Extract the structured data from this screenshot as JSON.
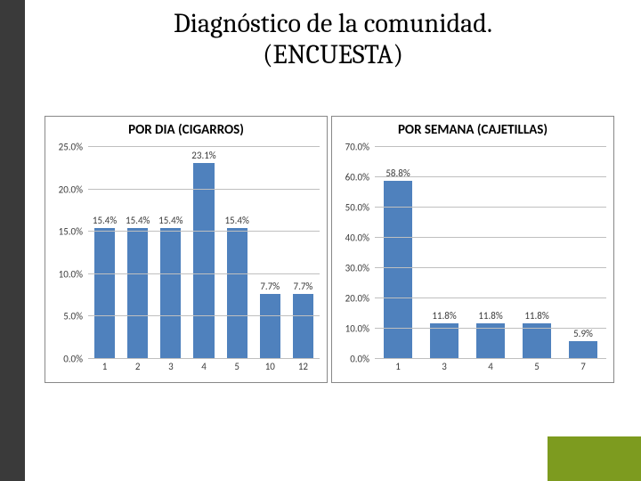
{
  "layout": {
    "sidebar_color": "#3a3a3a",
    "accent_color": "#7d9b1f"
  },
  "title": {
    "line1": "Diagnóstico de la comunidad.",
    "line2": "(ENCUESTA)",
    "fontsize": 30
  },
  "chart_left": {
    "type": "bar",
    "title": "POR DIA (CIGARROS)",
    "title_fontsize": 15,
    "categories": [
      "1",
      "2",
      "3",
      "4",
      "5",
      "10",
      "12"
    ],
    "values": [
      15.4,
      15.4,
      15.4,
      23.1,
      15.4,
      7.7,
      7.7
    ],
    "value_labels": [
      "15.4%",
      "15.4%",
      "15.4%",
      "23.1%",
      "15.4%",
      "7.7%",
      "7.7%"
    ],
    "bar_color": "#4f81bd",
    "ylim": [
      0,
      25
    ],
    "ytick_step": 5,
    "ytick_labels": [
      "0.0%",
      "5.0%",
      "10.0%",
      "15.0%",
      "20.0%",
      "25.0%"
    ],
    "grid_color": "#bfbfbf",
    "background_color": "#ffffff",
    "label_fontsize": 11
  },
  "chart_right": {
    "type": "bar",
    "title": "POR SEMANA (CAJETILLAS)",
    "title_fontsize": 15,
    "categories": [
      "1",
      "3",
      "4",
      "5",
      "7"
    ],
    "values": [
      58.8,
      11.8,
      11.8,
      11.8,
      5.9
    ],
    "value_labels": [
      "58.8%",
      "11.8%",
      "11.8%",
      "11.8%",
      "5.9%"
    ],
    "bar_color": "#4f81bd",
    "ylim": [
      0,
      70
    ],
    "ytick_step": 10,
    "ytick_labels": [
      "0.0%",
      "10.0%",
      "20.0%",
      "30.0%",
      "40.0%",
      "50.0%",
      "60.0%",
      "70.0%"
    ],
    "grid_color": "#bfbfbf",
    "background_color": "#ffffff",
    "label_fontsize": 11
  }
}
